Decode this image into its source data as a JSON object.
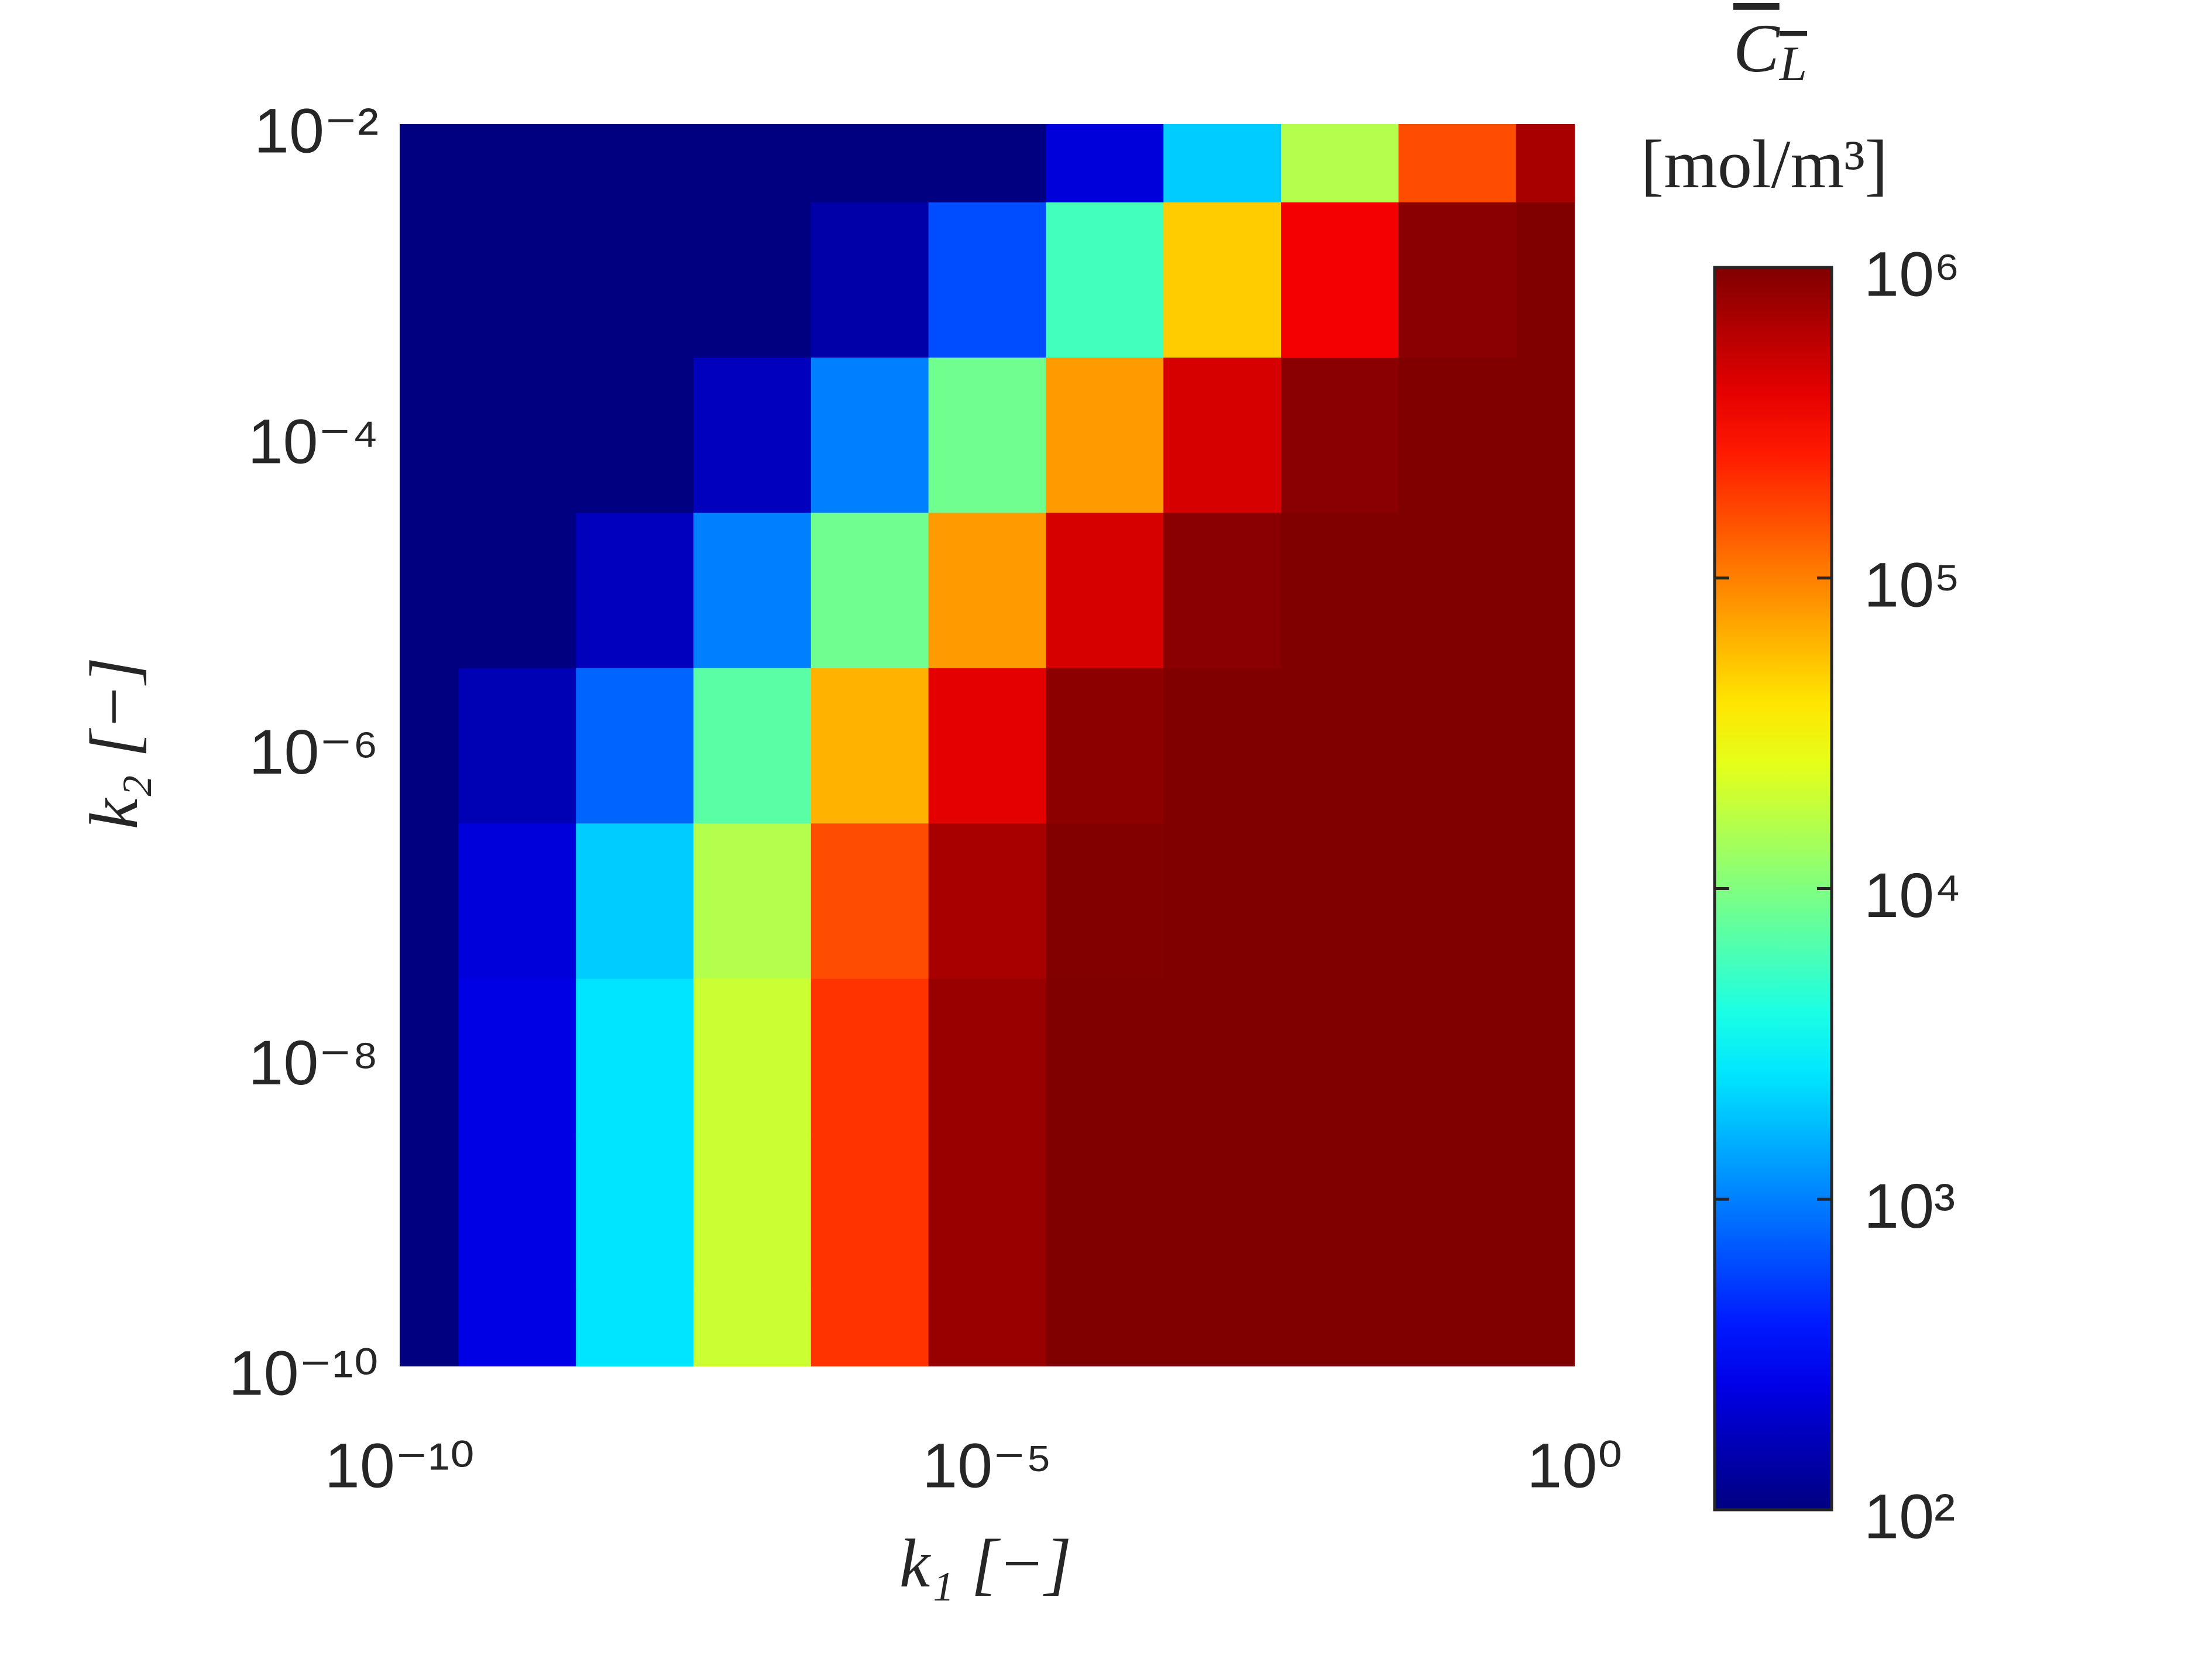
{
  "chart_data": {
    "type": "heatmap",
    "xlabel": "k₁ [−]",
    "ylabel": "k₂ [−]",
    "colorbar_title": "CL",
    "colorbar_units": "[mol/m³]",
    "colormap": "jet",
    "log_x": true,
    "log_y": true,
    "log_color": true,
    "x": [
      1e-10,
      1e-09,
      1e-08,
      1e-07,
      1e-06,
      1e-05,
      0.0001,
      0.001,
      0.01,
      0.1,
      1
    ],
    "y": [
      1e-10,
      1e-09,
      1e-08,
      1e-07,
      1e-06,
      1e-05,
      0.0001,
      0.001,
      0.01
    ],
    "z": [
      [
        100,
        250,
        2500,
        20000,
        200000,
        800000,
        1000000,
        1000000,
        1000000,
        1000000,
        1000000
      ],
      [
        100,
        250,
        2500,
        20000,
        200000,
        800000,
        1000000,
        1000000,
        1000000,
        1000000,
        1000000
      ],
      [
        100,
        250,
        2500,
        20000,
        200000,
        800000,
        1000000,
        1000000,
        1000000,
        1000000,
        1000000
      ],
      [
        100,
        229,
        2000,
        16000,
        158000,
        692000,
        977000,
        1000000,
        1000000,
        1000000,
        1000000
      ],
      [
        100,
        160,
        790,
        7100,
        63000,
        400000,
        890000,
        1000000,
        1000000,
        1000000,
        1000000
      ],
      [
        100,
        100,
        174,
        1000,
        8700,
        79000,
        457000,
        912000,
        1000000,
        1000000,
        1000000
      ],
      [
        100,
        100,
        100,
        174,
        1000,
        8700,
        79000,
        457000,
        912000,
        1000000,
        1000000
      ],
      [
        100,
        100,
        100,
        100,
        145,
        631,
        5750,
        50000,
        347000,
        912000,
        1000000
      ],
      [
        100,
        100,
        100,
        100,
        100,
        100,
        229,
        2000,
        16000,
        158000,
        692000
      ]
    ],
    "xlim": [
      1e-10,
      1
    ],
    "ylim": [
      1e-10,
      0.01
    ],
    "clim": [
      100,
      1000000
    ],
    "xticks": [
      {
        "value": 1e-10,
        "label": "10⁻¹⁰"
      },
      {
        "value": 1e-05,
        "label": "10⁻⁵"
      },
      {
        "value": 1,
        "label": "10⁰"
      }
    ],
    "yticks": [
      {
        "value": 1e-10,
        "label": "10⁻¹⁰"
      },
      {
        "value": 1e-08,
        "label": "10⁻⁸"
      },
      {
        "value": 1e-06,
        "label": "10⁻⁶"
      },
      {
        "value": 0.0001,
        "label": "10⁻⁴"
      },
      {
        "value": 0.01,
        "label": "10⁻²"
      }
    ],
    "cticks": [
      {
        "value": 100,
        "label": "10²"
      },
      {
        "value": 1000,
        "label": "10³"
      },
      {
        "value": 10000,
        "label": "10⁴"
      },
      {
        "value": 100000,
        "label": "10⁵"
      },
      {
        "value": 1000000,
        "label": "10⁶"
      }
    ]
  }
}
